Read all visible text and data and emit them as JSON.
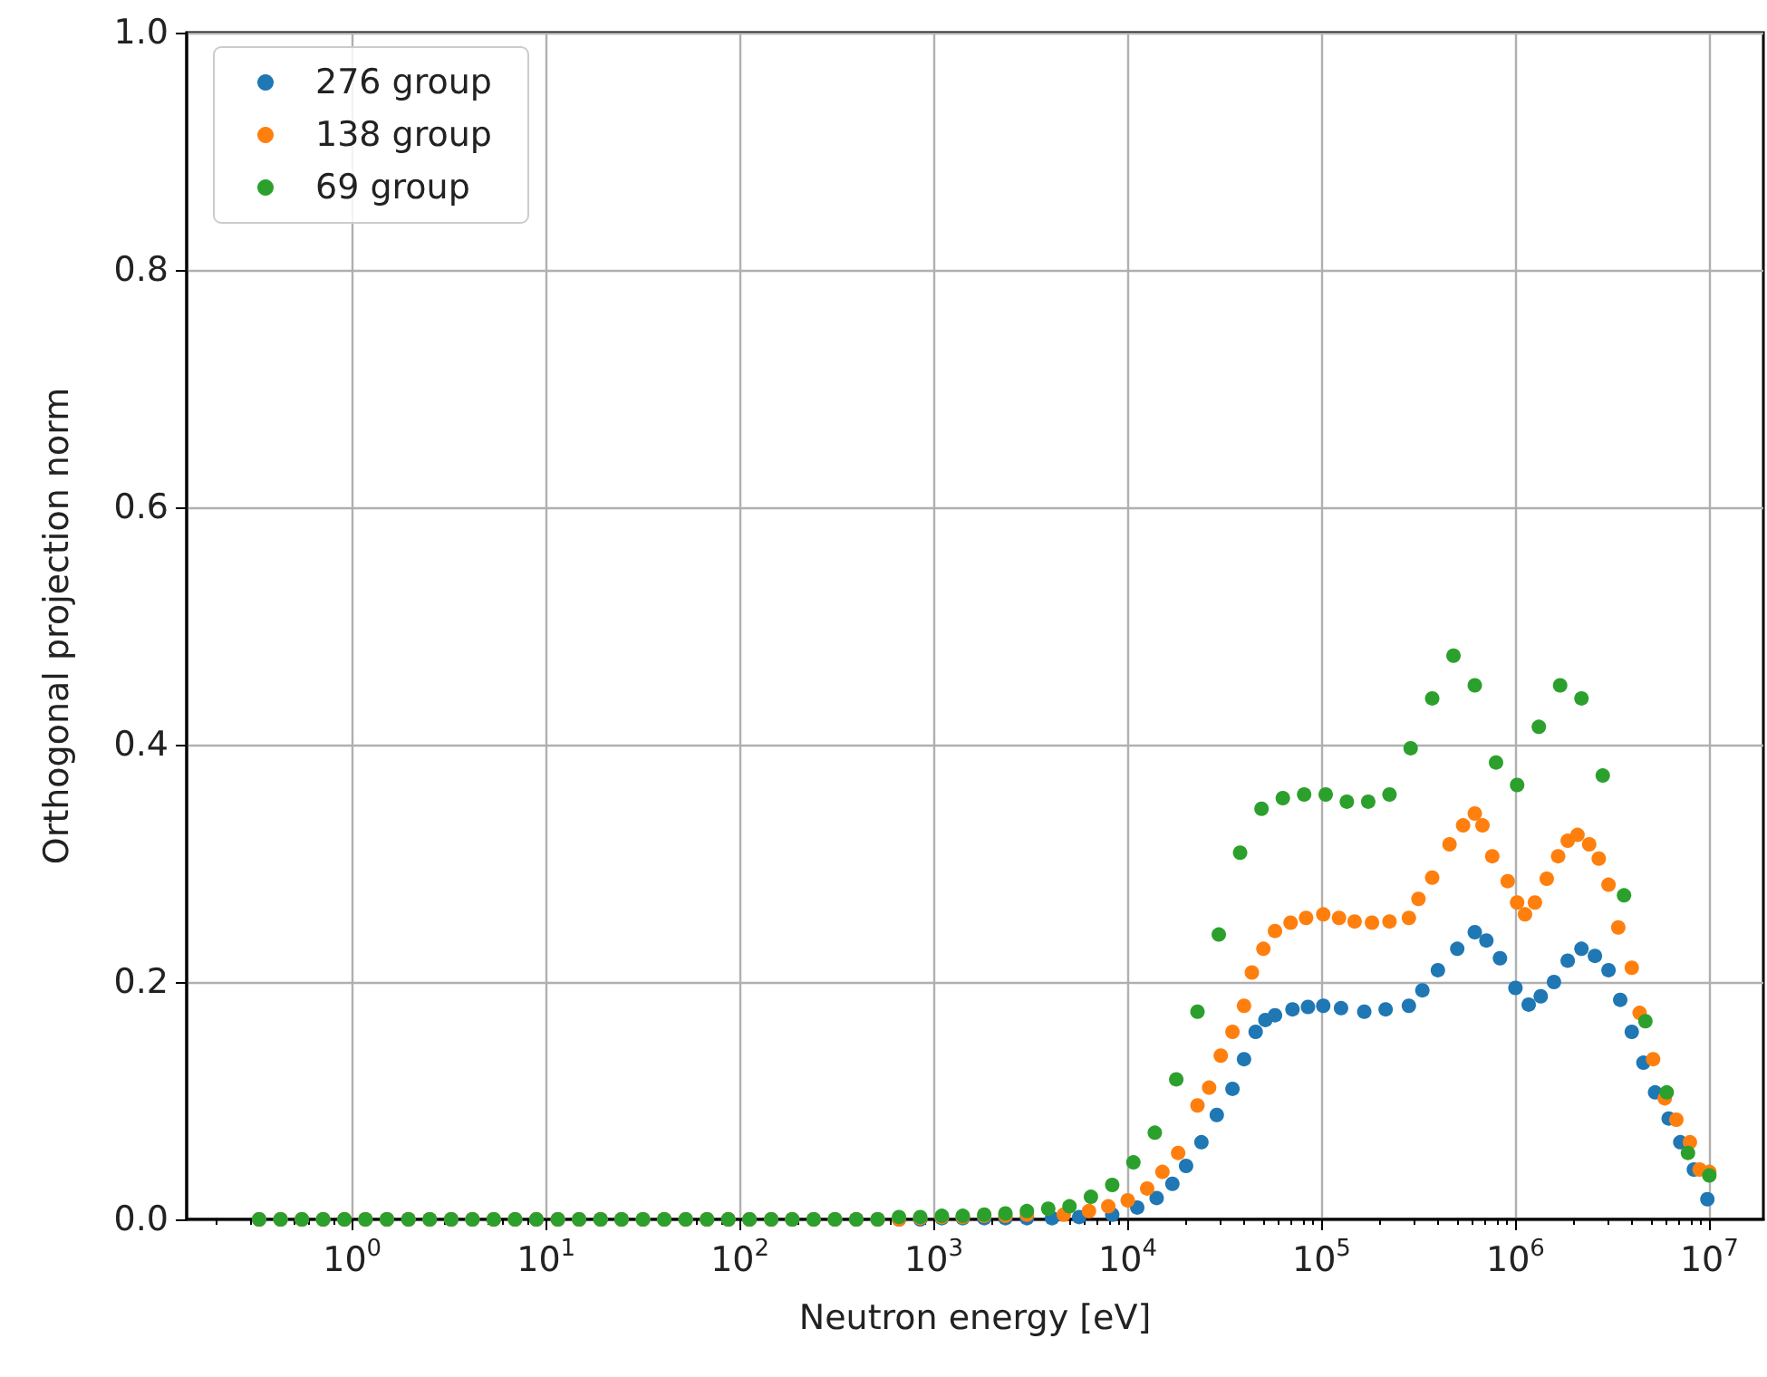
{
  "chart_data": {
    "type": "scatter",
    "xlabel": "Neutron energy [eV]",
    "ylabel": "Orthogonal projection norm",
    "log": "x",
    "grid": true,
    "legend": "top left",
    "marker": "circle",
    "xlim": [
      0.14,
      19000000
    ],
    "ylim": [
      0,
      1
    ],
    "xticks": [
      {
        "value": 1,
        "label": "10$^{0}$"
      },
      {
        "value": 10,
        "label": "10$^{1}$"
      },
      {
        "value": 100,
        "label": "10$^{2}$"
      },
      {
        "value": 1000,
        "label": "10$^{3}$"
      },
      {
        "value": 10000,
        "label": "10$^{4}$"
      },
      {
        "value": 100000,
        "label": "10$^{5}$"
      },
      {
        "value": 1000000,
        "label": "10$^{6}$"
      },
      {
        "value": 10000000,
        "label": "10$^{7}$"
      }
    ],
    "yticks": [
      {
        "value": 0,
        "label": "0.0"
      },
      0.2,
      0.4,
      0.6,
      0.8,
      {
        "value": 1,
        "label": "1.0"
      }
    ],
    "series": [
      {
        "name": "276 group",
        "color": "#1f77b4",
        "x": [
          0.331,
          0.427,
          0.55,
          0.708,
          0.912,
          1.17,
          1.51,
          1.95,
          2.51,
          3.24,
          4.17,
          5.37,
          6.92,
          8.91,
          11.5,
          14.8,
          19.1,
          24.5,
          31.6,
          40.7,
          52.5,
          67.6,
          87.1,
          112,
          145,
          186,
          240,
          309,
          398,
          513,
          661,
          851,
          1100,
          1410,
          1820,
          2340,
          3020,
          4070,
          5620,
          8320,
          11200,
          14100,
          17000,
          20000,
          24000,
          28800,
          34700,
          39800,
          45700,
          51300,
          57500,
          70800,
          85100,
          102000,
          126000,
          166000,
          214000,
          282000,
          331000,
          398000,
          501000,
          617000,
          708000,
          832000,
          1000000,
          1170000,
          1350000,
          1580000,
          1860000,
          2190000,
          2570000,
          3020000,
          3470000,
          3980000,
          4570000,
          5250000,
          6170000,
          7080000,
          8320000,
          9770000
        ],
        "values": [
          0,
          0,
          0,
          0,
          0,
          0,
          0,
          0,
          0,
          0,
          0,
          0,
          0,
          0,
          0,
          0,
          0,
          0,
          0,
          0,
          0,
          0,
          0,
          0,
          0,
          0,
          0,
          0,
          0,
          0,
          0,
          0,
          0.001,
          0.001,
          0.001,
          0.001,
          0.001,
          0.001,
          0.002,
          0.004,
          0.01,
          0.018,
          0.03,
          0.045,
          0.065,
          0.088,
          0.11,
          0.135,
          0.158,
          0.168,
          0.172,
          0.177,
          0.179,
          0.18,
          0.178,
          0.175,
          0.177,
          0.18,
          0.193,
          0.21,
          0.228,
          0.242,
          0.235,
          0.22,
          0.195,
          0.181,
          0.188,
          0.2,
          0.218,
          0.228,
          0.222,
          0.21,
          0.185,
          0.158,
          0.132,
          0.107,
          0.085,
          0.065,
          0.042,
          0.017
        ]
      },
      {
        "name": "138 group",
        "color": "#ff7f0e",
        "x": [
          0.331,
          0.427,
          0.55,
          0.708,
          0.912,
          1.17,
          1.51,
          1.95,
          2.51,
          3.24,
          4.17,
          5.37,
          6.92,
          8.91,
          11.5,
          14.8,
          19.1,
          24.5,
          31.6,
          40.7,
          52.5,
          67.6,
          87.1,
          112,
          145,
          186,
          240,
          309,
          398,
          513,
          661,
          851,
          1100,
          1410,
          1820,
          2340,
          3020,
          4680,
          6310,
          7940,
          10000,
          12600,
          15100,
          18200,
          22900,
          26300,
          30200,
          34700,
          39800,
          43700,
          50100,
          57500,
          69200,
          83200,
          102000,
          123000,
          148000,
          182000,
          224000,
          282000,
          316000,
          372000,
          457000,
          537000,
          617000,
          676000,
          759000,
          912000,
          1020000,
          1120000,
          1260000,
          1450000,
          1660000,
          1860000,
          2090000,
          2400000,
          2690000,
          3020000,
          3390000,
          3980000,
          4370000,
          5130000,
          5890000,
          6760000,
          7940000,
          8910000,
          10000000
        ],
        "values": [
          0,
          0,
          0,
          0,
          0,
          0,
          0,
          0,
          0,
          0,
          0,
          0,
          0,
          0,
          0,
          0,
          0,
          0,
          0,
          0,
          0,
          0,
          0,
          0,
          0,
          0,
          0,
          0,
          0,
          0,
          0,
          0.001,
          0.002,
          0.002,
          0.003,
          0.003,
          0.004,
          0.004,
          0.007,
          0.011,
          0.016,
          0.026,
          0.04,
          0.056,
          0.096,
          0.111,
          0.138,
          0.158,
          0.18,
          0.208,
          0.228,
          0.243,
          0.25,
          0.254,
          0.257,
          0.254,
          0.251,
          0.25,
          0.251,
          0.254,
          0.27,
          0.288,
          0.316,
          0.332,
          0.342,
          0.332,
          0.306,
          0.285,
          0.267,
          0.257,
          0.267,
          0.287,
          0.306,
          0.319,
          0.324,
          0.316,
          0.304,
          0.282,
          0.246,
          0.212,
          0.174,
          0.135,
          0.102,
          0.084,
          0.065,
          0.042,
          0.04
        ]
      },
      {
        "name": "69 group",
        "color": "#2ca02c",
        "x": [
          0.331,
          0.427,
          0.55,
          0.708,
          0.912,
          1.17,
          1.51,
          1.95,
          2.51,
          3.24,
          4.17,
          5.37,
          6.92,
          8.91,
          11.5,
          14.8,
          19.1,
          24.5,
          31.6,
          40.7,
          52.5,
          67.6,
          87.1,
          112,
          145,
          186,
          240,
          309,
          398,
          513,
          661,
          851,
          1100,
          1410,
          1820,
          2340,
          3020,
          3890,
          5010,
          6460,
          8320,
          10700,
          13800,
          17800,
          22900,
          29500,
          38000,
          49000,
          63100,
          81300,
          105000,
          135000,
          174000,
          224000,
          288000,
          372000,
          479000,
          617000,
          794000,
          1020000,
          1320000,
          1700000,
          2190000,
          2820000,
          3630000,
          4680000,
          6030000,
          7760000,
          10000000
        ],
        "values": [
          0,
          0,
          0,
          0,
          0,
          0,
          0,
          0,
          0,
          0,
          0,
          0,
          0,
          0,
          0,
          0,
          0,
          0,
          0,
          0,
          0,
          0,
          0,
          0,
          0,
          0,
          0,
          0,
          0,
          0,
          0.002,
          0.002,
          0.003,
          0.003,
          0.004,
          0.005,
          0.007,
          0.009,
          0.011,
          0.019,
          0.029,
          0.048,
          0.073,
          0.118,
          0.175,
          0.24,
          0.309,
          0.346,
          0.355,
          0.358,
          0.358,
          0.352,
          0.352,
          0.358,
          0.397,
          0.439,
          0.475,
          0.45,
          0.385,
          0.366,
          0.415,
          0.45,
          0.439,
          0.374,
          0.273,
          0.167,
          0.107,
          0.056,
          0.037
        ]
      }
    ]
  }
}
